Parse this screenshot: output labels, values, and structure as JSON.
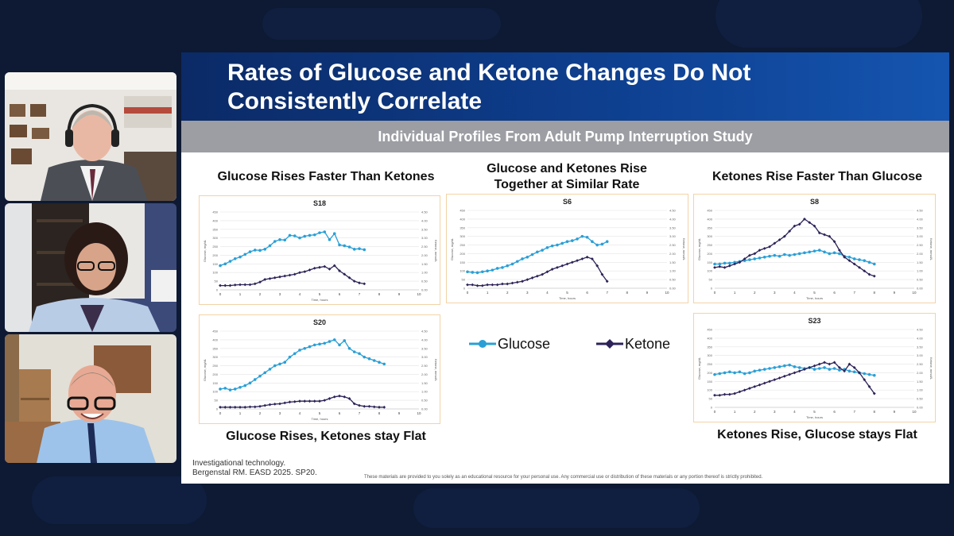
{
  "app": {
    "participants": [
      {
        "label": "Presenter 1 video tile"
      },
      {
        "label": "Presenter 2 video tile"
      },
      {
        "label": "Presenter 3 video tile"
      }
    ]
  },
  "slide": {
    "title_line1": "Rates of Glucose and Ketone Changes Do Not",
    "title_line2": "Consistently Correlate",
    "subtitle": "Individual Profiles From Adult Pump Interruption Study",
    "labels": {
      "top_left": "Glucose Rises Faster Than Ketones",
      "top_middle_line1": "Glucose and Ketones Rise",
      "top_middle_line2": "Together at Similar Rate",
      "top_right": "Ketones Rise Faster Than Glucose",
      "bottom_left": "Glucose Rises, Ketones stay Flat",
      "bottom_right": "Ketones Rise, Glucose stays Flat"
    },
    "legend": {
      "glucose": "Glucose",
      "ketone": "Ketone"
    },
    "footer_line1": "Investigational technology.",
    "footer_line2": "Bergenstal RM. EASD 2025. SP20.",
    "disclaimer": "These materials are provided to you solely as an educational resource for your personal use. Any commercial use or distribution of these materials or any portion thereof is strictly prohibited.",
    "colors": {
      "glucose": "#2a9fd6",
      "ketone": "#2e2358",
      "title_bg": "#0e3f8f",
      "subtitle_bg": "#9c9ea3"
    }
  },
  "chart_data": [
    {
      "type": "line",
      "title": "S18",
      "xlabel": "Time, hours",
      "ylabel": "Glucose, mg/dL",
      "y2label": "Ketone, mmol/L",
      "xlim": [
        0,
        10
      ],
      "ylim": [
        0,
        450
      ],
      "y2lim": [
        0,
        4.5
      ],
      "xticks": [
        "0",
        "1",
        "2",
        "3",
        "4",
        "5",
        "6",
        "7",
        "8",
        "9",
        "10"
      ],
      "yticks": [
        "0",
        "50",
        "100",
        "150",
        "200",
        "250",
        "300",
        "350",
        "400",
        "450"
      ],
      "y2ticks": [
        "0.00",
        "0.50",
        "1.00",
        "1.50",
        "2.00",
        "2.50",
        "3.00",
        "3.50",
        "4.00",
        "4.50"
      ],
      "series": [
        {
          "name": "Glucose",
          "x": [
            0,
            0.25,
            0.5,
            0.75,
            1,
            1.25,
            1.5,
            1.75,
            2,
            2.25,
            2.5,
            2.75,
            3,
            3.25,
            3.5,
            3.75,
            4,
            4.25,
            4.5,
            4.75,
            5,
            5.25,
            5.5,
            5.75,
            6,
            6.25,
            6.5,
            6.75,
            7,
            7.25
          ],
          "y": [
            140,
            150,
            165,
            180,
            190,
            205,
            220,
            230,
            228,
            235,
            255,
            280,
            290,
            288,
            315,
            312,
            300,
            310,
            315,
            318,
            330,
            335,
            290,
            325,
            260,
            255,
            248,
            235,
            238,
            232
          ]
        },
        {
          "name": "Ketone",
          "x": [
            0,
            0.25,
            0.5,
            0.75,
            1,
            1.25,
            1.5,
            1.75,
            2,
            2.25,
            2.5,
            2.75,
            3,
            3.25,
            3.5,
            3.75,
            4,
            4.25,
            4.5,
            4.75,
            5,
            5.25,
            5.5,
            5.75,
            6,
            6.25,
            6.5,
            6.75,
            7,
            7.25
          ],
          "y": [
            0.25,
            0.25,
            0.25,
            0.28,
            0.3,
            0.3,
            0.3,
            0.35,
            0.45,
            0.6,
            0.65,
            0.7,
            0.75,
            0.8,
            0.85,
            0.9,
            1.0,
            1.05,
            1.15,
            1.25,
            1.3,
            1.35,
            1.2,
            1.4,
            1.1,
            0.9,
            0.7,
            0.5,
            0.4,
            0.35
          ]
        }
      ]
    },
    {
      "type": "line",
      "title": "S6",
      "xlabel": "Time, hours",
      "ylabel": "Glucose, mg/dL",
      "y2label": "Ketone, mmol/L",
      "xlim": [
        0,
        10
      ],
      "ylim": [
        0,
        450
      ],
      "y2lim": [
        0,
        4.5
      ],
      "xticks": [
        "0",
        "1",
        "2",
        "3",
        "4",
        "5",
        "6",
        "7",
        "8",
        "9",
        "10"
      ],
      "yticks": [
        "0",
        "50",
        "100",
        "150",
        "200",
        "250",
        "300",
        "350",
        "400",
        "450"
      ],
      "y2ticks": [
        "0.00",
        "0.50",
        "1.00",
        "1.50",
        "2.00",
        "2.50",
        "3.00",
        "3.50",
        "4.00",
        "4.50"
      ],
      "series": [
        {
          "name": "Glucose",
          "x": [
            0,
            0.25,
            0.5,
            0.75,
            1,
            1.25,
            1.5,
            1.75,
            2,
            2.25,
            2.5,
            2.75,
            3,
            3.25,
            3.5,
            3.75,
            4,
            4.25,
            4.5,
            4.75,
            5,
            5.25,
            5.5,
            5.75,
            6,
            6.25,
            6.5,
            6.75,
            7
          ],
          "y": [
            95,
            92,
            90,
            95,
            100,
            105,
            115,
            120,
            130,
            140,
            155,
            170,
            180,
            195,
            210,
            220,
            235,
            245,
            250,
            260,
            270,
            275,
            285,
            300,
            295,
            270,
            250,
            255,
            270
          ]
        },
        {
          "name": "Ketone",
          "x": [
            0,
            0.25,
            0.5,
            0.75,
            1,
            1.25,
            1.5,
            1.75,
            2,
            2.25,
            2.5,
            2.75,
            3,
            3.25,
            3.5,
            3.75,
            4,
            4.25,
            4.5,
            4.75,
            5,
            5.25,
            5.5,
            5.75,
            6,
            6.25,
            6.5,
            6.75,
            7
          ],
          "y": [
            0.2,
            0.2,
            0.15,
            0.15,
            0.2,
            0.2,
            0.2,
            0.25,
            0.25,
            0.3,
            0.35,
            0.4,
            0.5,
            0.6,
            0.7,
            0.8,
            0.95,
            1.1,
            1.2,
            1.3,
            1.4,
            1.5,
            1.6,
            1.7,
            1.8,
            1.7,
            1.3,
            0.8,
            0.4
          ]
        }
      ]
    },
    {
      "type": "line",
      "title": "S8",
      "xlabel": "Time, hours",
      "ylabel": "Glucose, mg/dL",
      "y2label": "Ketone, mmol/L",
      "xlim": [
        0,
        10
      ],
      "ylim": [
        0,
        450
      ],
      "y2lim": [
        0,
        4.5
      ],
      "xticks": [
        "0",
        "1",
        "2",
        "3",
        "4",
        "5",
        "6",
        "7",
        "8",
        "9",
        "10"
      ],
      "yticks": [
        "0",
        "50",
        "100",
        "150",
        "200",
        "250",
        "300",
        "350",
        "400",
        "450"
      ],
      "y2ticks": [
        "0.00",
        "0.50",
        "1.00",
        "1.50",
        "2.00",
        "2.50",
        "3.00",
        "3.50",
        "4.00",
        "4.50"
      ],
      "series": [
        {
          "name": "Glucose",
          "x": [
            0,
            0.25,
            0.5,
            0.75,
            1,
            1.25,
            1.5,
            1.75,
            2,
            2.25,
            2.5,
            2.75,
            3,
            3.25,
            3.5,
            3.75,
            4,
            4.25,
            4.5,
            4.75,
            5,
            5.25,
            5.5,
            5.75,
            6,
            6.25,
            6.5,
            6.75,
            7,
            7.25,
            7.5,
            7.75,
            8
          ],
          "y": [
            140,
            140,
            145,
            145,
            150,
            155,
            160,
            165,
            170,
            175,
            180,
            185,
            190,
            185,
            195,
            190,
            195,
            200,
            205,
            210,
            215,
            220,
            210,
            200,
            205,
            200,
            185,
            180,
            170,
            165,
            160,
            150,
            140
          ]
        },
        {
          "name": "Ketone",
          "x": [
            0,
            0.25,
            0.5,
            0.75,
            1,
            1.25,
            1.5,
            1.75,
            2,
            2.25,
            2.5,
            2.75,
            3,
            3.25,
            3.5,
            3.75,
            4,
            4.25,
            4.5,
            4.75,
            5,
            5.25,
            5.5,
            5.75,
            6,
            6.25,
            6.5,
            6.75,
            7,
            7.25,
            7.5,
            7.75,
            8
          ],
          "y": [
            1.2,
            1.25,
            1.2,
            1.3,
            1.4,
            1.5,
            1.7,
            1.9,
            2.0,
            2.2,
            2.3,
            2.4,
            2.6,
            2.8,
            3.0,
            3.3,
            3.6,
            3.7,
            4.0,
            3.8,
            3.6,
            3.2,
            3.1,
            3.0,
            2.7,
            2.2,
            1.8,
            1.6,
            1.4,
            1.2,
            1.0,
            0.8,
            0.7
          ]
        }
      ]
    },
    {
      "type": "line",
      "title": "S20",
      "xlabel": "Time, hours",
      "ylabel": "Glucose, mg/dL",
      "y2label": "Ketone, mmol/L",
      "xlim": [
        0,
        10
      ],
      "ylim": [
        0,
        450
      ],
      "y2lim": [
        0,
        4.5
      ],
      "xticks": [
        "0",
        "1",
        "2",
        "3",
        "4",
        "5",
        "6",
        "7",
        "8",
        "9",
        "10"
      ],
      "yticks": [
        "0",
        "50",
        "100",
        "150",
        "200",
        "250",
        "300",
        "350",
        "400",
        "450"
      ],
      "y2ticks": [
        "0.00",
        "0.50",
        "1.00",
        "1.50",
        "2.00",
        "2.50",
        "3.00",
        "3.50",
        "4.00",
        "4.50"
      ],
      "series": [
        {
          "name": "Glucose",
          "x": [
            0,
            0.25,
            0.5,
            0.75,
            1,
            1.25,
            1.5,
            1.75,
            2,
            2.25,
            2.5,
            2.75,
            3,
            3.25,
            3.5,
            3.75,
            4,
            4.25,
            4.5,
            4.75,
            5,
            5.25,
            5.5,
            5.75,
            6,
            6.25,
            6.5,
            6.75,
            7,
            7.25,
            7.5,
            7.75,
            8,
            8.25
          ],
          "y": [
            115,
            120,
            110,
            115,
            125,
            135,
            150,
            170,
            190,
            210,
            230,
            250,
            260,
            270,
            300,
            320,
            340,
            350,
            360,
            370,
            375,
            380,
            390,
            400,
            370,
            395,
            350,
            330,
            320,
            300,
            290,
            280,
            270,
            260
          ]
        },
        {
          "name": "Ketone",
          "x": [
            0,
            0.25,
            0.5,
            0.75,
            1,
            1.25,
            1.5,
            1.75,
            2,
            2.25,
            2.5,
            2.75,
            3,
            3.25,
            3.5,
            3.75,
            4,
            4.25,
            4.5,
            4.75,
            5,
            5.25,
            5.5,
            5.75,
            6,
            6.25,
            6.5,
            6.75,
            7,
            7.25,
            7.5,
            7.75,
            8,
            8.25
          ],
          "y": [
            0.1,
            0.1,
            0.1,
            0.1,
            0.1,
            0.1,
            0.12,
            0.12,
            0.15,
            0.2,
            0.25,
            0.28,
            0.3,
            0.35,
            0.4,
            0.42,
            0.45,
            0.45,
            0.45,
            0.45,
            0.45,
            0.5,
            0.6,
            0.7,
            0.75,
            0.7,
            0.6,
            0.3,
            0.2,
            0.15,
            0.15,
            0.12,
            0.1,
            0.1
          ]
        }
      ]
    },
    {
      "type": "line",
      "title": "S23",
      "xlabel": "Time, hours",
      "ylabel": "Glucose, mg/dL",
      "y2label": "Ketone, mmol/L",
      "xlim": [
        0,
        10
      ],
      "ylim": [
        0,
        450
      ],
      "y2lim": [
        0,
        4.5
      ],
      "xticks": [
        "0",
        "1",
        "2",
        "3",
        "4",
        "5",
        "6",
        "7",
        "8",
        "9",
        "10"
      ],
      "yticks": [
        "0",
        "50",
        "100",
        "150",
        "200",
        "250",
        "300",
        "350",
        "400",
        "450"
      ],
      "y2ticks": [
        "0.00",
        "0.50",
        "1.00",
        "1.50",
        "2.00",
        "2.50",
        "3.00",
        "3.50",
        "4.00",
        "4.50"
      ],
      "series": [
        {
          "name": "Glucose",
          "x": [
            0,
            0.25,
            0.5,
            0.75,
            1,
            1.25,
            1.5,
            1.75,
            2,
            2.25,
            2.5,
            2.75,
            3,
            3.25,
            3.5,
            3.75,
            4,
            4.25,
            4.5,
            4.75,
            5,
            5.25,
            5.5,
            5.75,
            6,
            6.25,
            6.5,
            6.75,
            7,
            7.25,
            7.5,
            7.75,
            8
          ],
          "y": [
            190,
            195,
            200,
            205,
            200,
            205,
            195,
            200,
            210,
            215,
            220,
            225,
            230,
            235,
            240,
            245,
            235,
            230,
            225,
            230,
            220,
            225,
            230,
            220,
            225,
            215,
            220,
            210,
            205,
            200,
            195,
            190,
            185
          ]
        },
        {
          "name": "Ketone",
          "x": [
            0,
            0.25,
            0.5,
            0.75,
            1,
            1.25,
            1.5,
            1.75,
            2,
            2.25,
            2.5,
            2.75,
            3,
            3.25,
            3.5,
            3.75,
            4,
            4.25,
            4.5,
            4.75,
            5,
            5.25,
            5.5,
            5.75,
            6,
            6.25,
            6.5,
            6.75,
            7,
            7.25,
            7.5,
            7.75,
            8
          ],
          "y": [
            0.7,
            0.7,
            0.75,
            0.75,
            0.8,
            0.9,
            1.0,
            1.1,
            1.2,
            1.3,
            1.4,
            1.5,
            1.6,
            1.7,
            1.8,
            1.9,
            2.0,
            2.1,
            2.2,
            2.3,
            2.4,
            2.5,
            2.6,
            2.5,
            2.6,
            2.3,
            2.1,
            2.5,
            2.3,
            2.0,
            1.6,
            1.2,
            0.8
          ]
        }
      ]
    }
  ]
}
